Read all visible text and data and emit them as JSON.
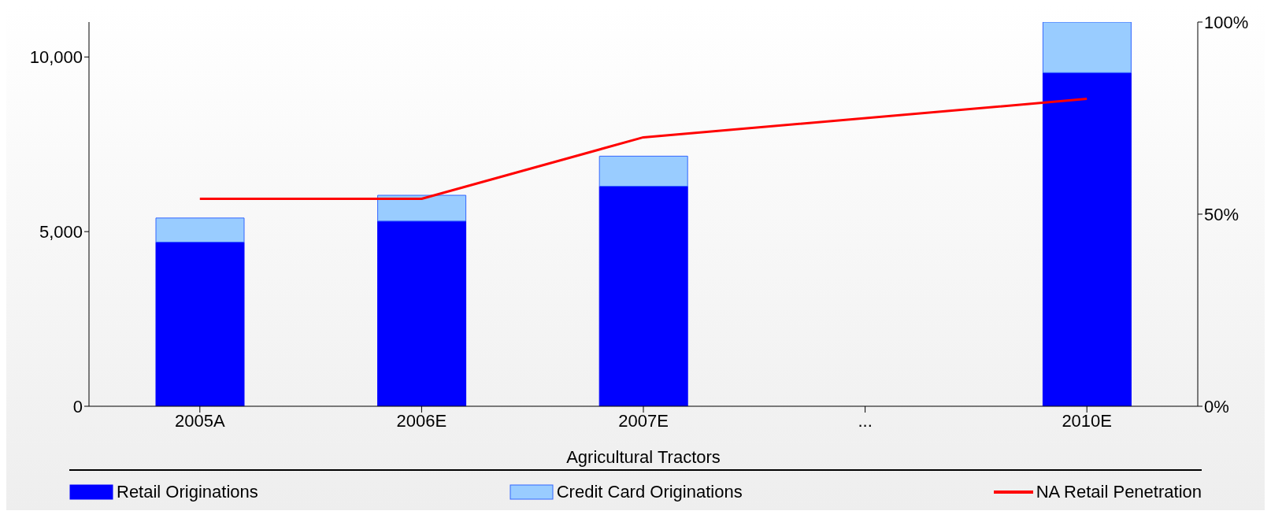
{
  "chart_data": {
    "type": "bar",
    "stacked": true,
    "xlabel": "Agricultural Tractors",
    "categories": [
      "2005A",
      "2006E",
      "2007E",
      "...",
      "2010E"
    ],
    "series": [
      {
        "name": "Retail Originations",
        "color": "#0000ff",
        "values": [
          4700,
          5300,
          6300,
          null,
          9550
        ]
      },
      {
        "name": "Credit Card Originations",
        "color": "#99ccff",
        "values": [
          690,
          740,
          860,
          null,
          1450
        ]
      },
      {
        "name": "NA Retail Penetration",
        "type": "line",
        "axis": "y2",
        "color": "#ff0000",
        "values": [
          54,
          54,
          70,
          null,
          80
        ]
      }
    ],
    "ylim": [
      0,
      11000
    ],
    "yticks": [
      0,
      {
        "value": 5000,
        "label": "5,000"
      },
      {
        "value": 10000,
        "label": "10,000"
      }
    ],
    "y2lim": [
      0,
      100
    ],
    "y2ticks": [
      {
        "value": 0,
        "label": "0%"
      },
      {
        "value": 50,
        "label": "50%"
      },
      {
        "value": 100,
        "label": "100%"
      }
    ],
    "grid": false,
    "legend": "bottom",
    "marker": "none",
    "line_style": "solid"
  }
}
